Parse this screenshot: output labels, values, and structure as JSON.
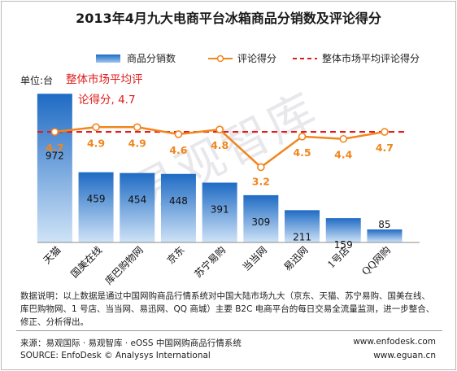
{
  "title": "2013年4月九大电商平台冰箱商品分销数及评论得分",
  "unit_label": "单位:台",
  "legend": {
    "bar": "商品分销数",
    "line": "评论得分",
    "avg": "整体市场平均评论得分"
  },
  "avg_annotation": {
    "line1": "整体市场平均评",
    "line2": "论得分, 4.7"
  },
  "watermark": "易观智库",
  "note": {
    "line1": "数据说明：以上数据是通过中国网购商品行情系统对中国大陆市场九大（京东、天猫、苏宁易购、国美在线、",
    "line2": "库巴购物网、1 号店、当当网、易迅网、QQ 商城）主要 B2C 电商平台的每日交易全流量监测，进一步整合、",
    "line3": "修正、分析得出。"
  },
  "source": {
    "cn": "来源：易观国际 · 易观智库 · eOSS 中国网购商品行情系统",
    "en": "SOURCE: EnfoDesk © Analysys International",
    "url1": "www.enfodesk.com",
    "url2": "www.eguan.cn"
  },
  "colors": {
    "bar_top": "#1f6bc4",
    "bar_bottom": "#cfe3f7",
    "line": "#f0861e",
    "avg": "#e11b1b",
    "label_orange": "#f0861e",
    "annotation_red": "#e11b1b"
  },
  "chart_data": {
    "type": "bar",
    "categories": [
      "天猫",
      "国美在线",
      "库巴购物网",
      "京东",
      "苏宁易购",
      "当当网",
      "易迅网",
      "1号店",
      "QQ网购"
    ],
    "series": [
      {
        "name": "商品分销数",
        "type": "bar",
        "values": [
          972,
          459,
          454,
          448,
          391,
          309,
          211,
          159,
          85
        ]
      },
      {
        "name": "评论得分",
        "type": "line",
        "values": [
          4.7,
          4.9,
          4.9,
          4.6,
          4.8,
          3.2,
          4.5,
          4.4,
          4.7
        ]
      }
    ],
    "average": {
      "name": "整体市场平均评论得分",
      "value": 4.7
    },
    "bar_ylim": [
      0,
      1000
    ],
    "line_ylim": [
      0,
      6.5
    ],
    "grid": false,
    "legend_position": "top"
  }
}
